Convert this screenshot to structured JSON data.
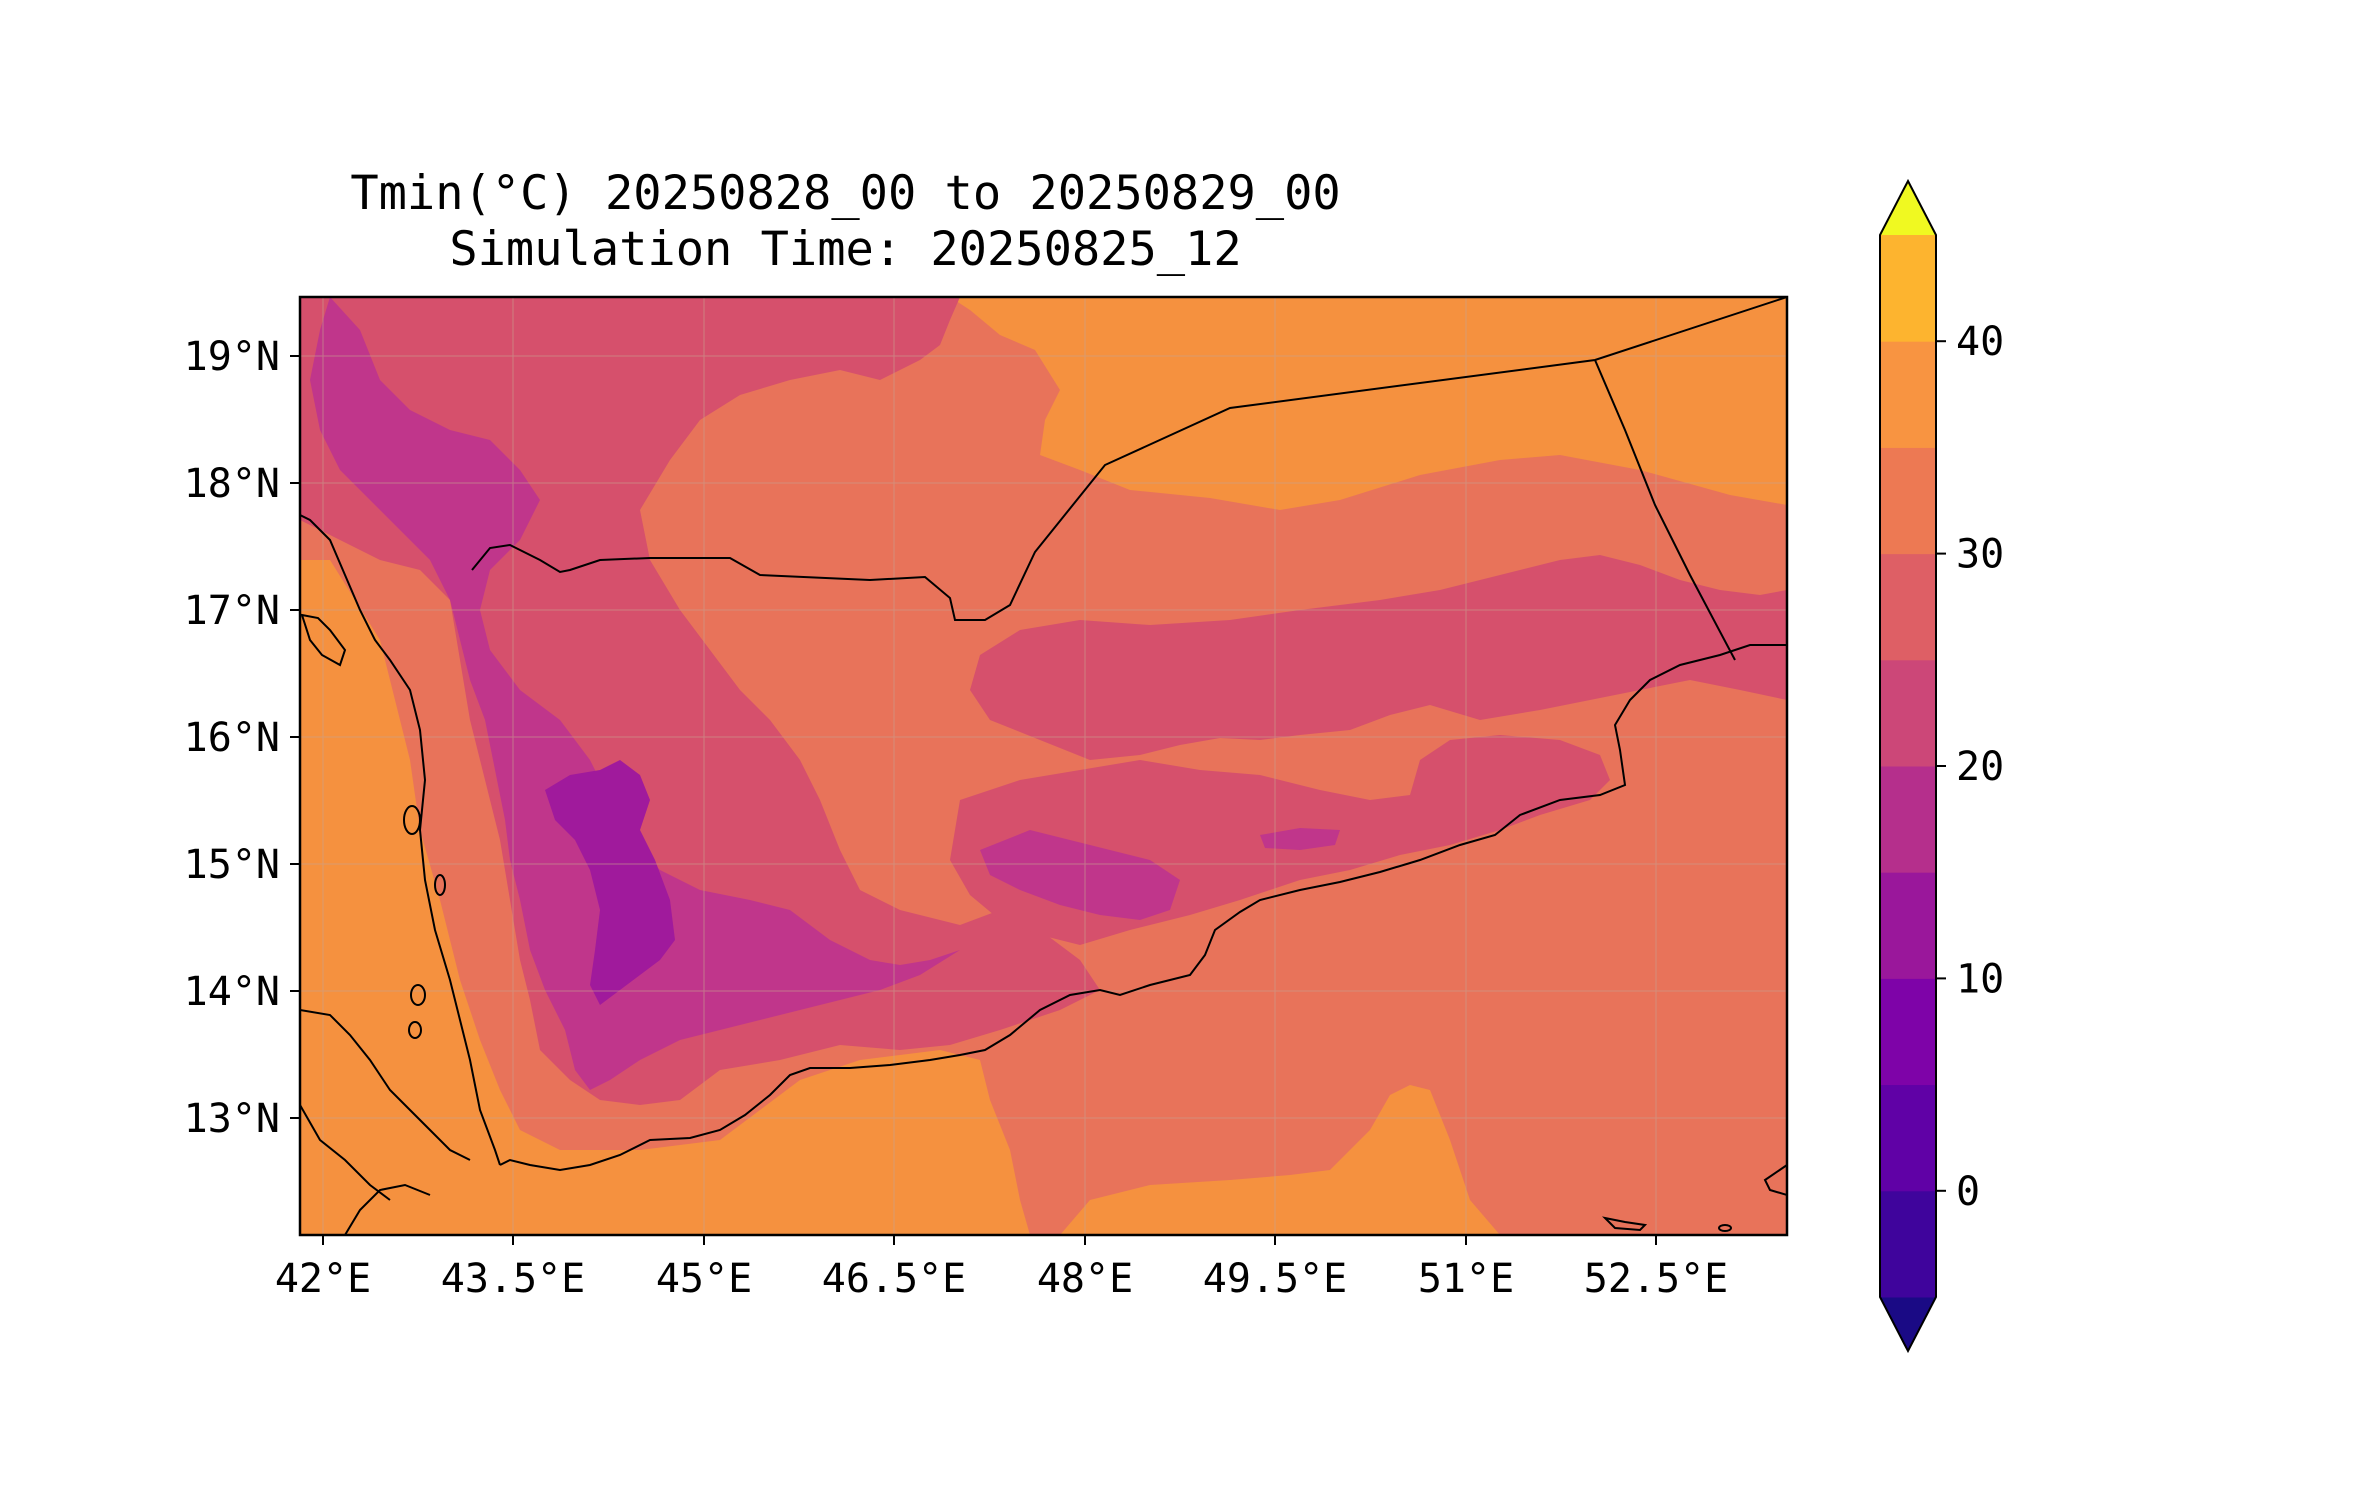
{
  "title": {
    "line1": "Tmin(°C) 20250828_00 to 20250829_00",
    "line2": "Simulation Time: 20250825_12"
  },
  "map": {
    "region": "Yemen",
    "lon_range": [
      41.6,
      53.3
    ],
    "lat_range": [
      12.1,
      19.5
    ],
    "lon_ticks": [
      "42°E",
      "43.5°E",
      "45°E",
      "46.5°E",
      "48°E",
      "49.5°E",
      "51°E",
      "52.5°E"
    ],
    "lat_ticks": [
      "19°N",
      "18°N",
      "17°N",
      "16°N",
      "15°N",
      "14°N",
      "13°N"
    ],
    "gridlines": true
  },
  "colorbar": {
    "levels": [
      -5,
      0,
      5,
      10,
      15,
      20,
      25,
      30,
      35,
      40,
      45
    ],
    "tick_labels": [
      "0",
      "10",
      "20",
      "30",
      "40"
    ],
    "extend": "both",
    "colormap": "plasma",
    "colors": [
      "#1a0a85",
      "#3f049c",
      "#6001a6",
      "#7e03a8",
      "#9a179b",
      "#b52f8c",
      "#cc4778",
      "#de5f65",
      "#ed7953",
      "#f89441",
      "#fdb42f",
      "#f0f921"
    ]
  },
  "field_colors": {
    "level_25_30": "#e8735a",
    "level_30_35": "#f5913f",
    "level_20_25": "#d6506c",
    "level_15_20": "#c0368b",
    "level_10_15": "#a01a9c"
  }
}
